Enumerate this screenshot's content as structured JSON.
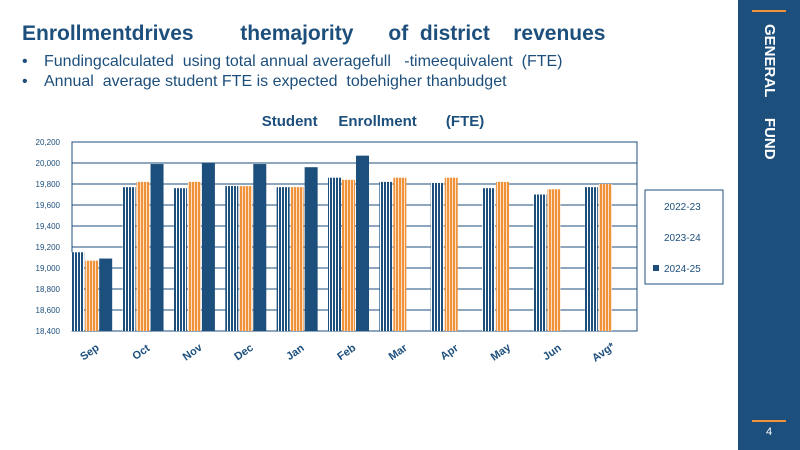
{
  "slide": {
    "title": "Enrollmentdrives        themajority      of  district    revenues",
    "bullets": [
      "Fundingcalculated  using total annual averagefull   -timeequivalent  (FTE)",
      "Annual  average student FTE is expected  tobehigher thanbudget"
    ],
    "bullet_glyph": "•",
    "side_label": "GENERAL     FUND",
    "page_number": "4"
  },
  "colors": {
    "navy": "#1d4f7c",
    "orange": "#f0923a",
    "light_blue": "#a9c4de",
    "white": "#ffffff"
  },
  "chart_data": {
    "type": "bar",
    "title": "Student     Enrollment       (FTE)",
    "categories": [
      "Sep",
      "Oct",
      "Nov",
      "Dec",
      "Jan",
      "Feb",
      "Mar",
      "Apr",
      "May",
      "Jun",
      "Avg*"
    ],
    "series": [
      {
        "name": "2022-23",
        "values": [
          19150,
          19770,
          19760,
          19780,
          19770,
          19860,
          19820,
          19810,
          19760,
          19700,
          19770
        ],
        "pattern": "navy-stripes"
      },
      {
        "name": "2023-24",
        "values": [
          19070,
          19820,
          19820,
          19780,
          19770,
          19840,
          19860,
          19860,
          19820,
          19750,
          19800
        ],
        "pattern": "orange-stripes"
      },
      {
        "name": "2024-25",
        "values": [
          19090,
          19990,
          20000,
          19990,
          19960,
          20070,
          null,
          null,
          null,
          null,
          null
        ],
        "pattern": "solid-navy"
      }
    ],
    "yticks": [
      "18,400",
      "18,600",
      "18,800",
      "19,000",
      "19,200",
      "19,400",
      "19,600",
      "19,800",
      "20,000",
      "20,200"
    ],
    "ylim": [
      18400,
      20200
    ],
    "xlabel": "",
    "ylabel": "",
    "grid": true,
    "legend_position": "right"
  }
}
